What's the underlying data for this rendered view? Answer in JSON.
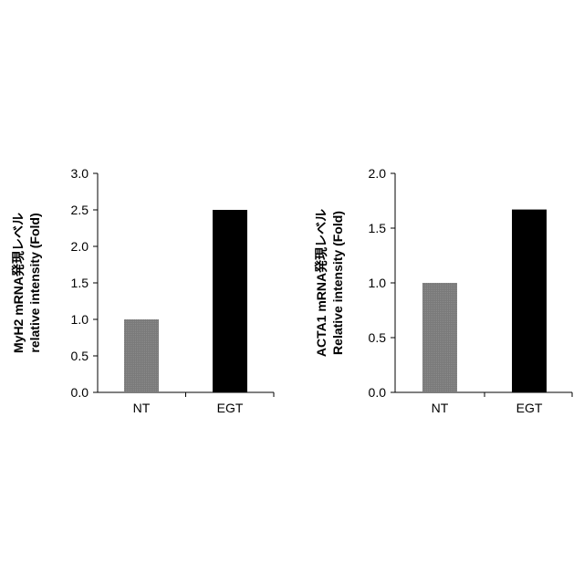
{
  "chart_data": [
    {
      "type": "bar",
      "categories": [
        "NT",
        "EGT"
      ],
      "values": [
        1.0,
        2.5
      ],
      "bar_colors": [
        "#808080",
        "#000000"
      ],
      "ylabel_line1": "MyH2 mRNA発現レベル",
      "ylabel_line2": "relative intensity (Fold)",
      "ylim": [
        0,
        3.0
      ],
      "yticks": [
        "0.0",
        "0.5",
        "1.0",
        "1.5",
        "2.0",
        "2.5",
        "3.0"
      ],
      "grid": false
    },
    {
      "type": "bar",
      "categories": [
        "NT",
        "EGT"
      ],
      "values": [
        1.0,
        1.67
      ],
      "bar_colors": [
        "#808080",
        "#000000"
      ],
      "ylabel_line1": "ACTA1 mRNA発現レベル",
      "ylabel_line2": "Relative intensity (Fold)",
      "ylim": [
        0,
        2.0
      ],
      "yticks": [
        "0.0",
        "0.5",
        "1.0",
        "1.5",
        "2.0"
      ],
      "grid": false
    }
  ]
}
